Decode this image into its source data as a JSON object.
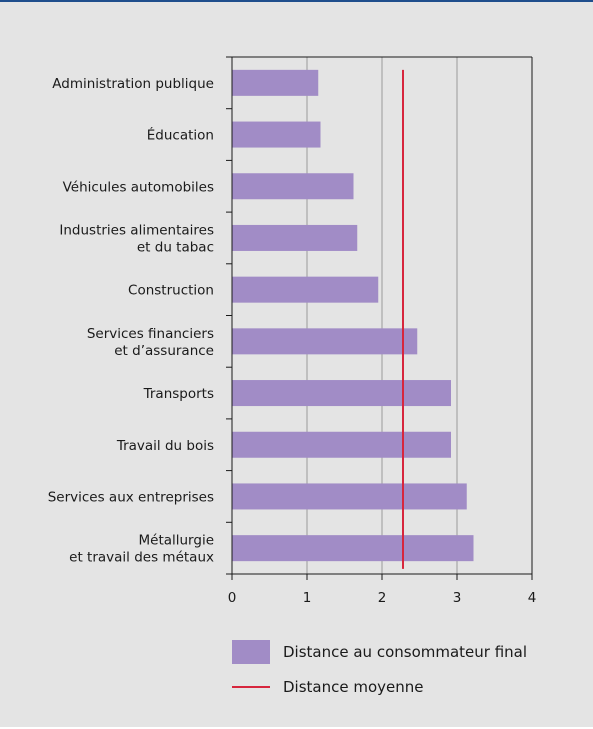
{
  "chart_data": {
    "type": "bar",
    "orientation": "horizontal",
    "categories": [
      [
        "Administration publique"
      ],
      [
        "Éducation"
      ],
      [
        "Véhicules automobiles"
      ],
      [
        "Industries alimentaires",
        "et du tabac"
      ],
      [
        "Construction"
      ],
      [
        "Services financiers",
        "et d’assurance"
      ],
      [
        "Transports"
      ],
      [
        "Travail du bois"
      ],
      [
        "Services aux entreprises"
      ],
      [
        "Métallurgie",
        "et travail des métaux"
      ]
    ],
    "series": [
      {
        "name": "Distance au consommateur final",
        "values": [
          1.15,
          1.18,
          1.62,
          1.67,
          1.95,
          2.47,
          2.92,
          2.92,
          3.13,
          3.22
        ],
        "color": "#a18cc6"
      }
    ],
    "reference_line": {
      "name": "Distance moyenne",
      "value": 2.28,
      "color": "#d7263d"
    },
    "xlim": [
      0,
      4
    ],
    "xticks": [
      "0",
      "1",
      "2",
      "3",
      "4"
    ],
    "grid": "vertical",
    "legend": "bottom"
  }
}
